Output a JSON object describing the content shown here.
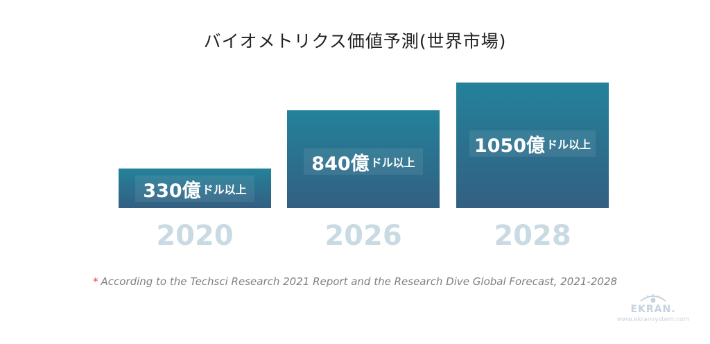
{
  "title": "バイオメトリクス価値予測(世界市場)",
  "chart_data": {
    "type": "bar",
    "categories": [
      "2020",
      "2026",
      "2028"
    ],
    "values": [
      330,
      840,
      1050
    ],
    "value_labels": [
      {
        "number": "330億",
        "unit": "ドル以上"
      },
      {
        "number": "840億",
        "unit": "ドル以上"
      },
      {
        "number": "1050億",
        "unit": "ドル以上"
      }
    ],
    "bar_color_top": "#23829a",
    "bar_color_bottom": "#335f82",
    "year_color": "#c9dae3"
  },
  "footnote": {
    "marker": "*",
    "text": "According to the Techsci Research 2021 Report and the Research Dive Global Forecast, 2021-2028"
  },
  "logo": {
    "icon": "eye-icon",
    "brand": "EKRAN.",
    "url": "www.ekransystem.com"
  }
}
